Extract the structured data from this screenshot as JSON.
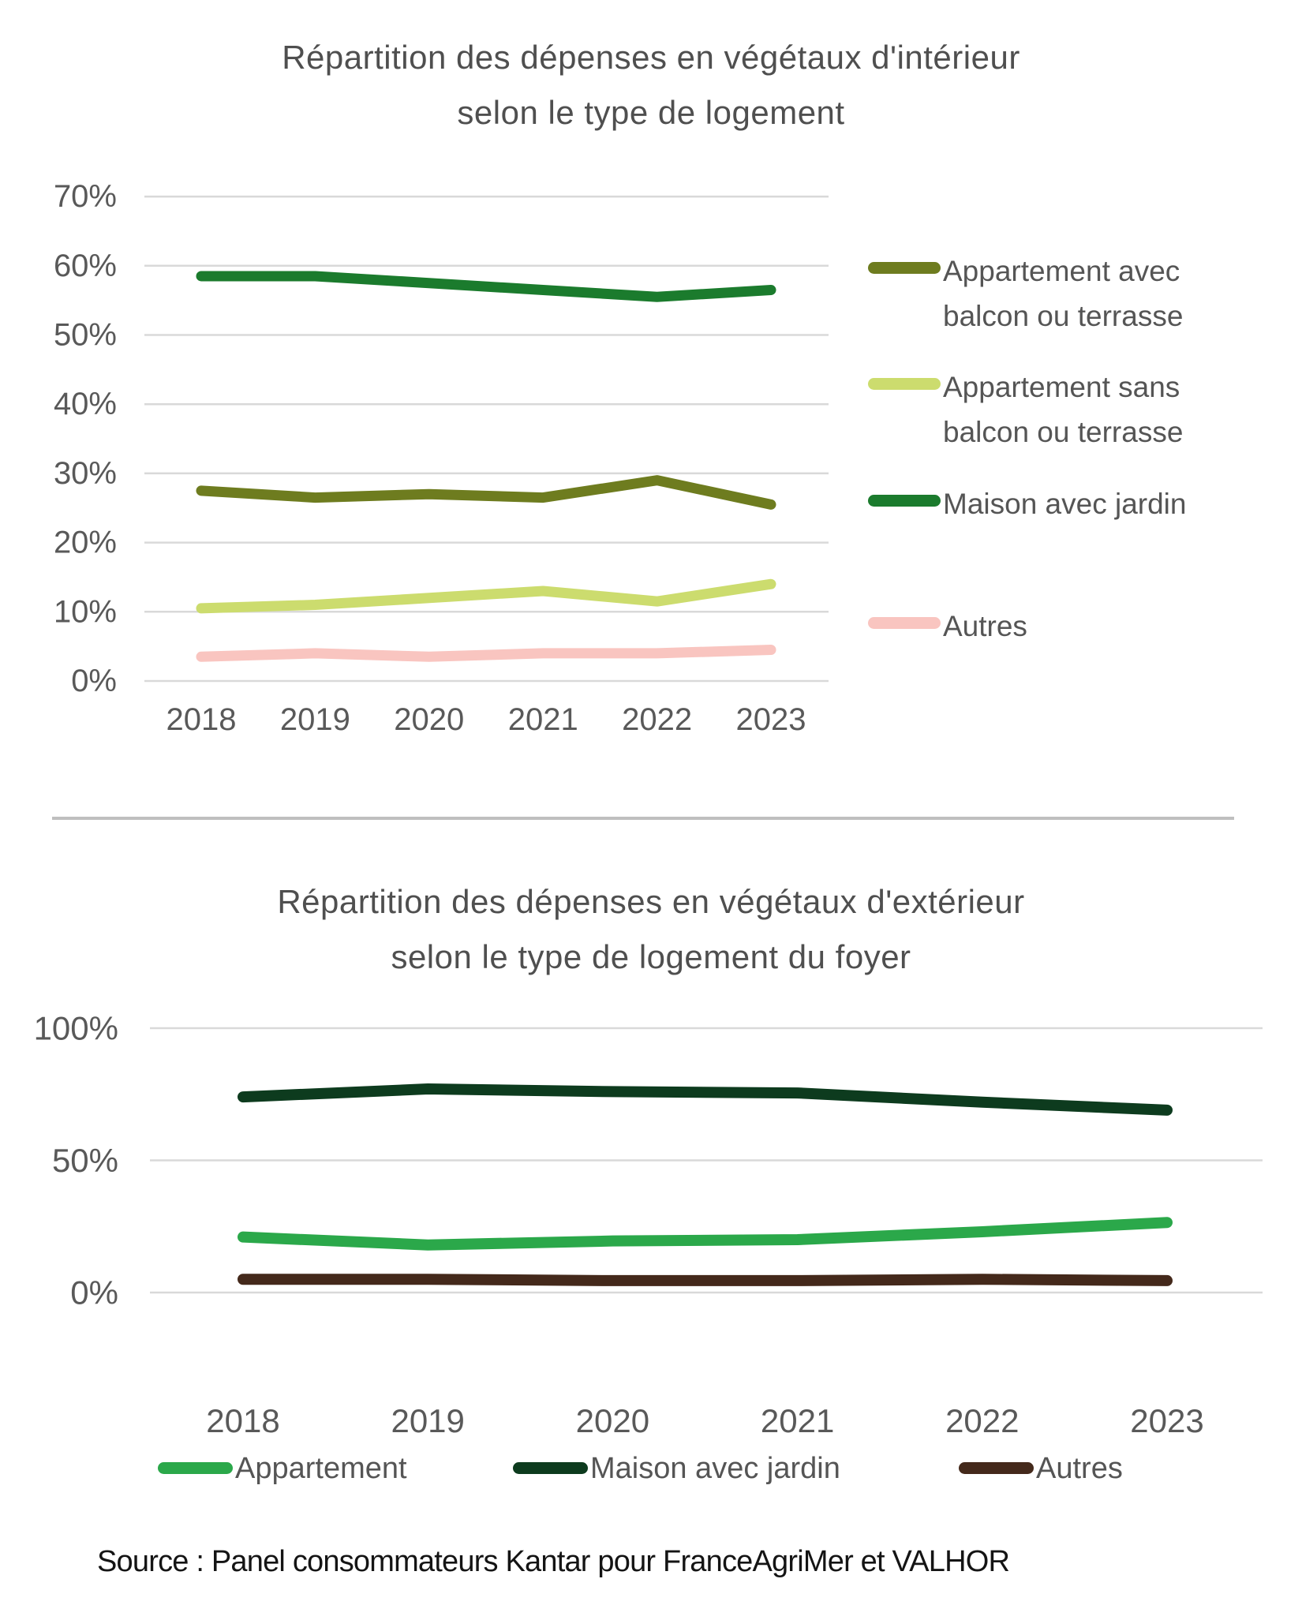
{
  "page": {
    "source": "Source : Panel consommateurs Kantar pour FranceAgriMer et VALHOR"
  },
  "chart_data": [
    {
      "type": "line",
      "title_line1": "Répartition des dépenses en végétaux d'intérieur",
      "title_line2": "selon le type de logement",
      "categories": [
        "2018",
        "2019",
        "2020",
        "2021",
        "2022",
        "2023"
      ],
      "yticks": [
        70,
        60,
        50,
        40,
        30,
        20,
        10,
        0
      ],
      "ylim": [
        0,
        70
      ],
      "unit": "%",
      "grid": true,
      "legend_position": "right",
      "series": [
        {
          "name": "Appartement avec balcon ou terrasse",
          "color": "#6E7C1F",
          "values": [
            27.5,
            26.5,
            27,
            26.5,
            29,
            25.5
          ]
        },
        {
          "name": "Appartement sans balcon ou terrasse",
          "color": "#CCDC6E",
          "values": [
            10.5,
            11,
            12,
            13,
            11.5,
            14
          ]
        },
        {
          "name": "Maison avec jardin",
          "color": "#1B7B2D",
          "values": [
            58.5,
            58.5,
            57.5,
            56.5,
            55.5,
            56.5
          ]
        },
        {
          "name": "Autres",
          "color": "#F9C5C0",
          "values": [
            3.5,
            4,
            3.5,
            4,
            4,
            4.5
          ]
        }
      ]
    },
    {
      "type": "line",
      "title_line1": "Répartition des dépenses en végétaux d'extérieur",
      "title_line2": "selon le type de logement du foyer",
      "categories": [
        "2018",
        "2019",
        "2020",
        "2021",
        "2022",
        "2023"
      ],
      "yticks": [
        100,
        50,
        0
      ],
      "ylim": [
        0,
        100
      ],
      "unit": "%",
      "grid": true,
      "legend_position": "bottom",
      "series": [
        {
          "name": "Appartement",
          "color": "#2BA84A",
          "values": [
            21,
            18,
            19.5,
            20,
            23,
            26.5
          ]
        },
        {
          "name": "Maison avec jardin",
          "color": "#0D3B1E",
          "values": [
            74,
            77,
            76,
            75.5,
            72,
            69
          ]
        },
        {
          "name": "Autres",
          "color": "#44291B",
          "values": [
            5,
            5,
            4.5,
            4.5,
            5,
            4.5
          ]
        }
      ]
    }
  ]
}
